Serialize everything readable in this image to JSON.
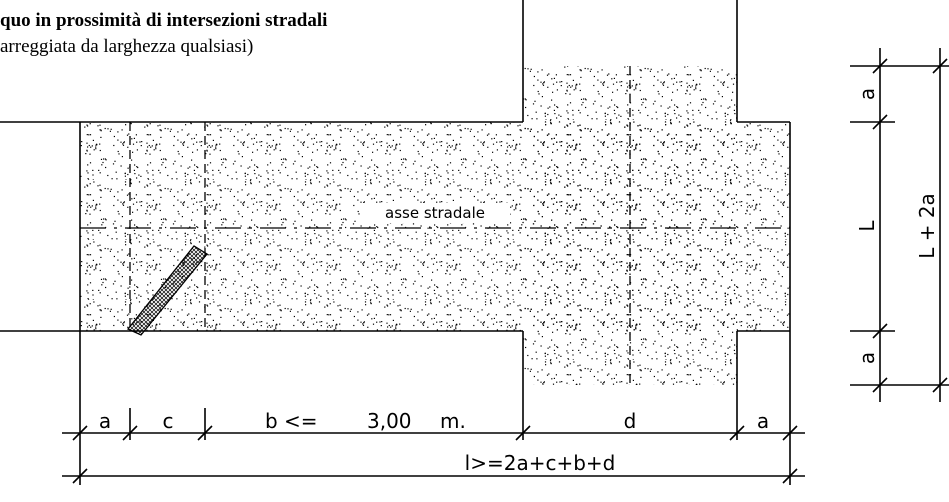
{
  "header": {
    "title": "quo in prossimità di intersezioni stradali",
    "subtitle": "arreggiata da larghezza qualsiasi)"
  },
  "labels": {
    "axis": "asse stradale"
  },
  "bottom_dims": {
    "a1": "a",
    "c": "c",
    "b": "b <=",
    "b_value": "3,00",
    "b_unit": "m.",
    "d": "d",
    "a2": "a",
    "total": "l>=2a+c+b+d"
  },
  "side_dims": {
    "a1": "a",
    "L": "L",
    "a2": "a",
    "total": "L + 2a"
  }
}
